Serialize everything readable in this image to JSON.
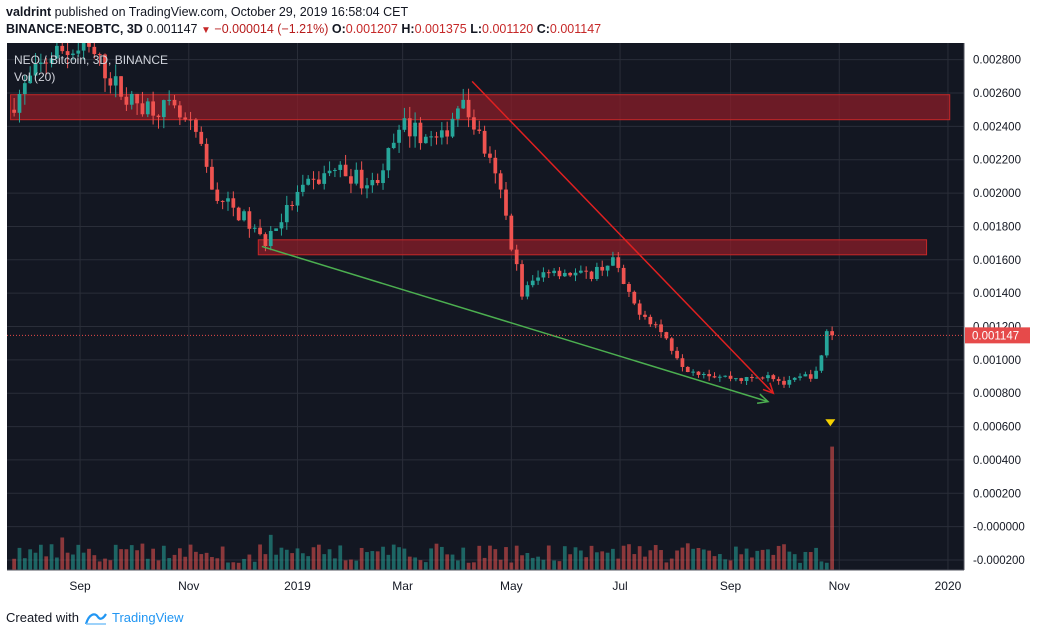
{
  "header": {
    "author": "valdrint",
    "published_text": "published on TradingView.com, October 29, 2019 16:58:04 CET",
    "symbol": "BINANCE:NEOBTC, 3D",
    "last": "0.001147",
    "change": "−0.000014 (−1.21%)",
    "o_label": "O:",
    "o_value": "0.001207",
    "h_label": "H:",
    "h_value": "0.001375",
    "l_label": "L:",
    "l_value": "0.001120",
    "c_label": "C:",
    "c_value": "0.001147"
  },
  "legend": {
    "series_title": "NEO / Bitcoin, 3D, BINANCE",
    "volume_title": "Vol (20)"
  },
  "footer": {
    "created_with": "Created with",
    "brand": "TradingView"
  },
  "colors": {
    "background": "#131722",
    "up": "#26a69a",
    "down": "#ef5350",
    "zone": "#8b1e28",
    "red_line": "#e02020",
    "green_line": "#4caf50",
    "marker": "#f5d200",
    "price_tag": "#e64a4a"
  },
  "chart_data": {
    "type": "candlestick",
    "title": "NEO / Bitcoin, 3D, BINANCE",
    "price_axis": {
      "ticks": [
        "0.002800",
        "0.002600",
        "0.002400",
        "0.002200",
        "0.002000",
        "0.001800",
        "0.001600",
        "0.001400",
        "0.001200",
        "0.001000",
        "0.000800",
        "0.000600",
        "0.000400",
        "0.000200",
        "-0.000000",
        "-0.000200"
      ],
      "ylim": [
        -0.00026,
        0.0029
      ]
    },
    "time_axis": {
      "ticks": [
        {
          "label": "Sep",
          "date": "2018-09-01"
        },
        {
          "label": "Nov",
          "date": "2018-11-01"
        },
        {
          "label": "2019",
          "date": "2019-01-01"
        },
        {
          "label": "Mar",
          "date": "2019-03-01"
        },
        {
          "label": "May",
          "date": "2019-05-01"
        },
        {
          "label": "Jul",
          "date": "2019-07-01"
        },
        {
          "label": "Sep",
          "date": "2019-09-01"
        },
        {
          "label": "Nov",
          "date": "2019-11-01"
        },
        {
          "label": "2020",
          "date": "2020-01-01"
        }
      ],
      "xlim": [
        "2018-07-22",
        "2020-01-10"
      ]
    },
    "current_price": "0.001147",
    "current_value": 0.001147,
    "price_path": [
      {
        "date": "2018-07-26",
        "price": 0.0025
      },
      {
        "date": "2018-08-05",
        "price": 0.00265
      },
      {
        "date": "2018-08-20",
        "price": 0.00285
      },
      {
        "date": "2018-09-10",
        "price": 0.00285
      },
      {
        "date": "2018-10-01",
        "price": 0.00255
      },
      {
        "date": "2018-10-25",
        "price": 0.0025
      },
      {
        "date": "2018-11-08",
        "price": 0.00235
      },
      {
        "date": "2018-11-18",
        "price": 0.002
      },
      {
        "date": "2018-12-05",
        "price": 0.00185
      },
      {
        "date": "2018-12-16",
        "price": 0.0017
      },
      {
        "date": "2019-01-05",
        "price": 0.002
      },
      {
        "date": "2019-01-25",
        "price": 0.00215
      },
      {
        "date": "2019-02-15",
        "price": 0.00205
      },
      {
        "date": "2019-03-05",
        "price": 0.0024
      },
      {
        "date": "2019-03-25",
        "price": 0.0023
      },
      {
        "date": "2019-04-05",
        "price": 0.00255
      },
      {
        "date": "2019-04-14",
        "price": 0.0024
      },
      {
        "date": "2019-04-28",
        "price": 0.002
      },
      {
        "date": "2019-05-10",
        "price": 0.0014
      },
      {
        "date": "2019-05-25",
        "price": 0.00155
      },
      {
        "date": "2019-06-15",
        "price": 0.0015
      },
      {
        "date": "2019-06-30",
        "price": 0.0016
      },
      {
        "date": "2019-07-10",
        "price": 0.00135
      },
      {
        "date": "2019-07-25",
        "price": 0.0012
      },
      {
        "date": "2019-08-10",
        "price": 0.00095
      },
      {
        "date": "2019-08-30",
        "price": 0.0009
      },
      {
        "date": "2019-09-15",
        "price": 0.00088
      },
      {
        "date": "2019-09-25",
        "price": 0.00092
      },
      {
        "date": "2019-10-05",
        "price": 0.00085
      },
      {
        "date": "2019-10-15",
        "price": 0.0009
      },
      {
        "date": "2019-10-24",
        "price": 0.00092
      },
      {
        "date": "2019-10-27",
        "price": 0.00121
      },
      {
        "date": "2019-10-29",
        "price": 0.00115
      }
    ],
    "volume_spike": {
      "date": "2019-10-27",
      "value": 0.00048
    },
    "zones": [
      {
        "from_date": "2018-07-24",
        "to_date": "2020-01-02",
        "top": 0.00259,
        "bottom": 0.00244
      },
      {
        "from_date": "2018-12-10",
        "to_date": "2019-12-20",
        "top": 0.00172,
        "bottom": 0.00163
      }
    ],
    "trend_lines": [
      {
        "color": "red",
        "from": {
          "date": "2019-04-09",
          "price": 0.00267
        },
        "to": {
          "date": "2019-09-25",
          "price": 0.0008
        }
      },
      {
        "color": "green",
        "from": {
          "date": "2018-12-12",
          "price": 0.00168
        },
        "to": {
          "date": "2019-09-22",
          "price": 0.00075
        }
      }
    ],
    "marker": {
      "date": "2019-10-27",
      "price": 0.00062
    },
    "grid": true,
    "legend_position": "top-left"
  }
}
